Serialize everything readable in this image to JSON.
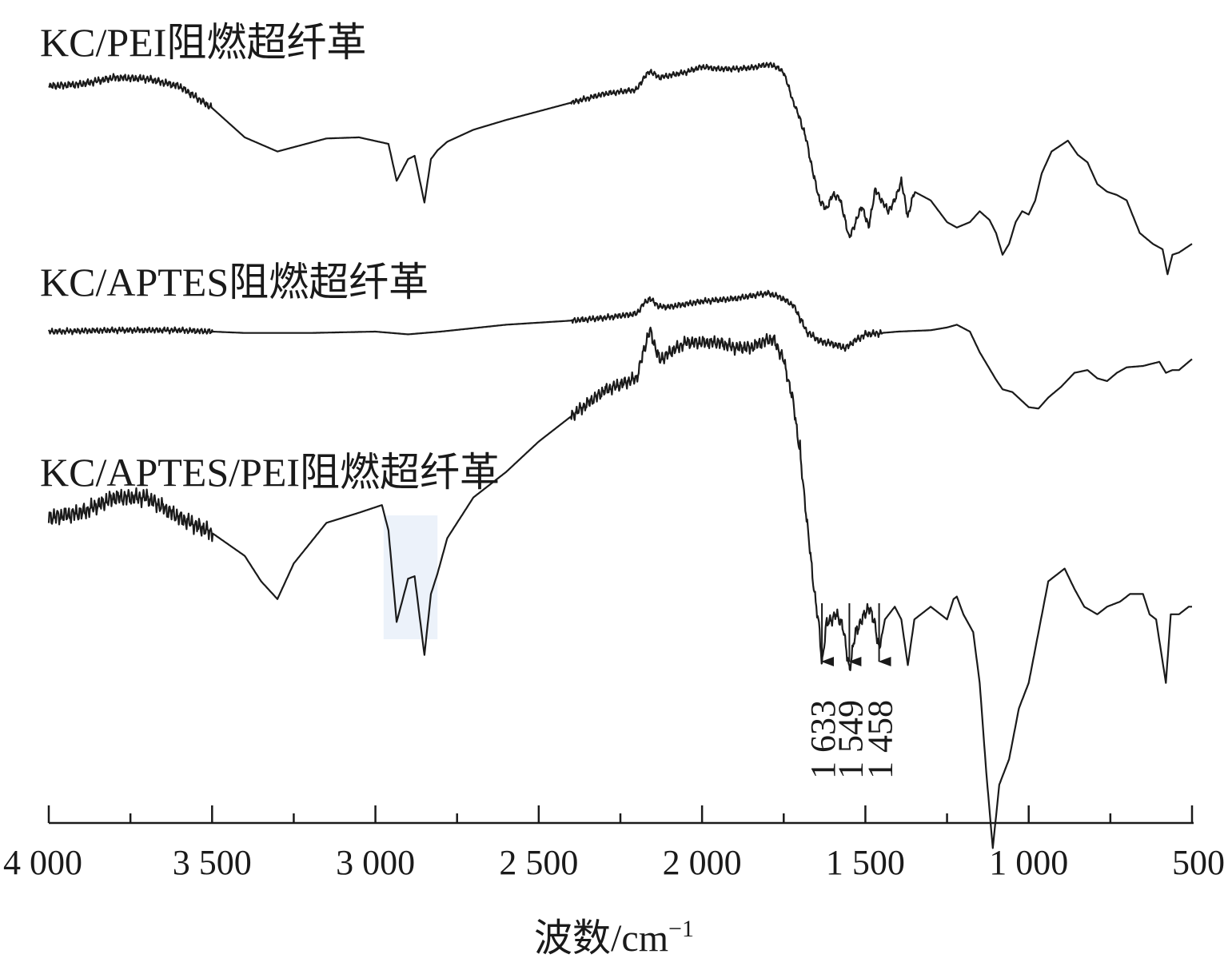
{
  "chart_data": {
    "type": "line",
    "xlabel": "波数/cm",
    "xlabel_sup": "−1",
    "xlim": [
      4000,
      500
    ],
    "x_ticks": [
      {
        "value": 4000,
        "label": "4 000"
      },
      {
        "value": 3500,
        "label": "3 500"
      },
      {
        "value": 3000,
        "label": "3 000"
      },
      {
        "value": 2500,
        "label": "2 500"
      },
      {
        "value": 2000,
        "label": "2 000"
      },
      {
        "value": 1500,
        "label": "1 500"
      },
      {
        "value": 1000,
        "label": "1 000"
      },
      {
        "value": 500,
        "label": "500"
      }
    ],
    "minor_ticks": [
      3750,
      3250,
      2750,
      2250,
      1750,
      1250,
      750
    ],
    "line_color": "#1a1a1a",
    "highlight_color": "#dce8f5",
    "series": [
      {
        "name": "KC/PEI阻燃超纤革",
        "points": [
          [
            4000,
            0.85
          ],
          [
            3900,
            0.87
          ],
          [
            3800,
            0.93
          ],
          [
            3700,
            0.92
          ],
          [
            3600,
            0.85
          ],
          [
            3500,
            0.65
          ],
          [
            3400,
            0.38
          ],
          [
            3300,
            0.25
          ],
          [
            3150,
            0.37
          ],
          [
            3050,
            0.38
          ],
          [
            2960,
            0.32
          ],
          [
            2935,
            -0.02
          ],
          [
            2900,
            0.18
          ],
          [
            2880,
            0.21
          ],
          [
            2850,
            -0.22
          ],
          [
            2830,
            0.18
          ],
          [
            2810,
            0.26
          ],
          [
            2780,
            0.34
          ],
          [
            2700,
            0.45
          ],
          [
            2600,
            0.54
          ],
          [
            2500,
            0.62
          ],
          [
            2400,
            0.7
          ],
          [
            2300,
            0.78
          ],
          [
            2200,
            0.82
          ],
          [
            2180,
            0.92
          ],
          [
            2160,
            0.99
          ],
          [
            2130,
            0.93
          ],
          [
            2100,
            0.95
          ],
          [
            2050,
            0.98
          ],
          [
            2000,
            1.03
          ],
          [
            1950,
            1.01
          ],
          [
            1900,
            1.01
          ],
          [
            1850,
            1.02
          ],
          [
            1800,
            1.05
          ],
          [
            1780,
            1.04
          ],
          [
            1750,
            0.98
          ],
          [
            1720,
            0.7
          ],
          [
            1700,
            0.55
          ],
          [
            1680,
            0.35
          ],
          [
            1660,
            0.05
          ],
          [
            1640,
            -0.2
          ],
          [
            1620,
            -0.28
          ],
          [
            1600,
            -0.15
          ],
          [
            1580,
            -0.17
          ],
          [
            1560,
            -0.4
          ],
          [
            1550,
            -0.55
          ],
          [
            1530,
            -0.4
          ],
          [
            1510,
            -0.25
          ],
          [
            1490,
            -0.45
          ],
          [
            1470,
            -0.1
          ],
          [
            1450,
            -0.2
          ],
          [
            1430,
            -0.3
          ],
          [
            1410,
            -0.2
          ],
          [
            1390,
            -0.02
          ],
          [
            1370,
            -0.35
          ],
          [
            1350,
            -0.12
          ],
          [
            1300,
            -0.2
          ],
          [
            1250,
            -0.4
          ],
          [
            1220,
            -0.45
          ],
          [
            1180,
            -0.4
          ],
          [
            1150,
            -0.3
          ],
          [
            1120,
            -0.38
          ],
          [
            1100,
            -0.5
          ],
          [
            1080,
            -0.7
          ],
          [
            1060,
            -0.6
          ],
          [
            1040,
            -0.4
          ],
          [
            1020,
            -0.3
          ],
          [
            1000,
            -0.33
          ],
          [
            980,
            -0.2
          ],
          [
            960,
            0.05
          ],
          [
            930,
            0.25
          ],
          [
            880,
            0.35
          ],
          [
            850,
            0.22
          ],
          [
            820,
            0.15
          ],
          [
            790,
            -0.05
          ],
          [
            760,
            -0.12
          ],
          [
            730,
            -0.15
          ],
          [
            700,
            -0.2
          ],
          [
            680,
            -0.35
          ],
          [
            660,
            -0.5
          ],
          [
            640,
            -0.55
          ],
          [
            620,
            -0.6
          ],
          [
            590,
            -0.65
          ],
          [
            575,
            -0.88
          ],
          [
            560,
            -0.7
          ],
          [
            540,
            -0.68
          ],
          [
            510,
            -0.62
          ],
          [
            500,
            -0.6
          ]
        ],
        "noise_ranges": [
          [
            4000,
            3500,
            0.04
          ],
          [
            2400,
            1700,
            0.03
          ],
          [
            1700,
            1350,
            0.04
          ]
        ]
      },
      {
        "name": "KC/APTES阻燃超纤革",
        "points": [
          [
            4000,
            0.0
          ],
          [
            3800,
            0.01
          ],
          [
            3600,
            0.01
          ],
          [
            3400,
            -0.01
          ],
          [
            3200,
            -0.01
          ],
          [
            3000,
            0.0
          ],
          [
            2950,
            -0.01
          ],
          [
            2900,
            -0.02
          ],
          [
            2800,
            0.0
          ],
          [
            2600,
            0.05
          ],
          [
            2400,
            0.08
          ],
          [
            2300,
            0.1
          ],
          [
            2200,
            0.13
          ],
          [
            2180,
            0.2
          ],
          [
            2160,
            0.24
          ],
          [
            2130,
            0.18
          ],
          [
            2100,
            0.18
          ],
          [
            2050,
            0.2
          ],
          [
            2000,
            0.22
          ],
          [
            1900,
            0.24
          ],
          [
            1800,
            0.28
          ],
          [
            1760,
            0.25
          ],
          [
            1720,
            0.19
          ],
          [
            1700,
            0.1
          ],
          [
            1680,
            0.0
          ],
          [
            1640,
            -0.07
          ],
          [
            1600,
            -0.09
          ],
          [
            1560,
            -0.12
          ],
          [
            1540,
            -0.08
          ],
          [
            1500,
            -0.02
          ],
          [
            1450,
            -0.01
          ],
          [
            1400,
            0.0
          ],
          [
            1300,
            0.01
          ],
          [
            1250,
            0.03
          ],
          [
            1220,
            0.05
          ],
          [
            1180,
            0.0
          ],
          [
            1150,
            -0.15
          ],
          [
            1100,
            -0.35
          ],
          [
            1080,
            -0.42
          ],
          [
            1050,
            -0.44
          ],
          [
            1000,
            -0.55
          ],
          [
            970,
            -0.56
          ],
          [
            940,
            -0.48
          ],
          [
            900,
            -0.4
          ],
          [
            860,
            -0.3
          ],
          [
            820,
            -0.28
          ],
          [
            790,
            -0.34
          ],
          [
            760,
            -0.36
          ],
          [
            730,
            -0.3
          ],
          [
            700,
            -0.26
          ],
          [
            650,
            -0.25
          ],
          [
            600,
            -0.22
          ],
          [
            580,
            -0.3
          ],
          [
            560,
            -0.28
          ],
          [
            540,
            -0.28
          ],
          [
            510,
            -0.22
          ],
          [
            500,
            -0.2
          ]
        ],
        "noise_ranges": [
          [
            4000,
            3500,
            0.025
          ],
          [
            2400,
            1700,
            0.025
          ],
          [
            1700,
            1450,
            0.03
          ]
        ]
      },
      {
        "name": "KC/APTES/PEI阻燃超纤革",
        "points": [
          [
            4000,
            0.3
          ],
          [
            3900,
            0.32
          ],
          [
            3800,
            0.38
          ],
          [
            3700,
            0.38
          ],
          [
            3600,
            0.3
          ],
          [
            3500,
            0.24
          ],
          [
            3400,
            0.15
          ],
          [
            3350,
            0.05
          ],
          [
            3300,
            -0.02
          ],
          [
            3250,
            0.12
          ],
          [
            3200,
            0.2
          ],
          [
            3150,
            0.28
          ],
          [
            3050,
            0.32
          ],
          [
            2980,
            0.35
          ],
          [
            2960,
            0.25
          ],
          [
            2935,
            -0.11
          ],
          [
            2900,
            0.06
          ],
          [
            2880,
            0.07
          ],
          [
            2850,
            -0.24
          ],
          [
            2830,
            0.0
          ],
          [
            2810,
            0.08
          ],
          [
            2780,
            0.22
          ],
          [
            2700,
            0.38
          ],
          [
            2600,
            0.48
          ],
          [
            2500,
            0.6
          ],
          [
            2400,
            0.7
          ],
          [
            2300,
            0.8
          ],
          [
            2200,
            0.85
          ],
          [
            2180,
            0.95
          ],
          [
            2160,
            1.04
          ],
          [
            2130,
            0.92
          ],
          [
            2100,
            0.95
          ],
          [
            2050,
            0.99
          ],
          [
            2000,
            0.99
          ],
          [
            1950,
            0.99
          ],
          [
            1900,
            0.97
          ],
          [
            1850,
            0.97
          ],
          [
            1800,
            1.0
          ],
          [
            1780,
            1.0
          ],
          [
            1750,
            0.92
          ],
          [
            1720,
            0.75
          ],
          [
            1700,
            0.55
          ],
          [
            1680,
            0.3
          ],
          [
            1660,
            0.05
          ],
          [
            1640,
            -0.15
          ],
          [
            1633,
            -0.28
          ],
          [
            1620,
            -0.12
          ],
          [
            1590,
            -0.08
          ],
          [
            1570,
            -0.12
          ],
          [
            1549,
            -0.3
          ],
          [
            1530,
            -0.15
          ],
          [
            1510,
            -0.1
          ],
          [
            1490,
            -0.05
          ],
          [
            1470,
            -0.12
          ],
          [
            1458,
            -0.22
          ],
          [
            1440,
            -0.1
          ],
          [
            1410,
            -0.05
          ],
          [
            1390,
            -0.1
          ],
          [
            1370,
            -0.28
          ],
          [
            1350,
            -0.1
          ],
          [
            1300,
            -0.05
          ],
          [
            1270,
            -0.08
          ],
          [
            1250,
            -0.1
          ],
          [
            1230,
            -0.02
          ],
          [
            1220,
            -0.01
          ],
          [
            1200,
            -0.08
          ],
          [
            1170,
            -0.15
          ],
          [
            1150,
            -0.35
          ],
          [
            1130,
            -0.7
          ],
          [
            1110,
            -1.0
          ],
          [
            1090,
            -0.75
          ],
          [
            1060,
            -0.65
          ],
          [
            1030,
            -0.45
          ],
          [
            1000,
            -0.35
          ],
          [
            970,
            -0.15
          ],
          [
            940,
            0.05
          ],
          [
            890,
            0.1
          ],
          [
            860,
            0.02
          ],
          [
            830,
            -0.05
          ],
          [
            790,
            -0.08
          ],
          [
            760,
            -0.05
          ],
          [
            720,
            -0.03
          ],
          [
            690,
            0.0
          ],
          [
            650,
            0.0
          ],
          [
            630,
            -0.08
          ],
          [
            610,
            -0.1
          ],
          [
            580,
            -0.35
          ],
          [
            565,
            -0.08
          ],
          [
            540,
            -0.08
          ],
          [
            510,
            -0.05
          ],
          [
            500,
            -0.05
          ]
        ],
        "noise_ranges": [
          [
            4000,
            3500,
            0.04
          ],
          [
            2400,
            1700,
            0.03
          ],
          [
            1700,
            1450,
            0.03
          ]
        ]
      }
    ],
    "annotations": [
      {
        "x": 1633,
        "label": "1 633"
      },
      {
        "x": 1549,
        "label": "1 549"
      },
      {
        "x": 1458,
        "label": "1 458"
      }
    ]
  }
}
